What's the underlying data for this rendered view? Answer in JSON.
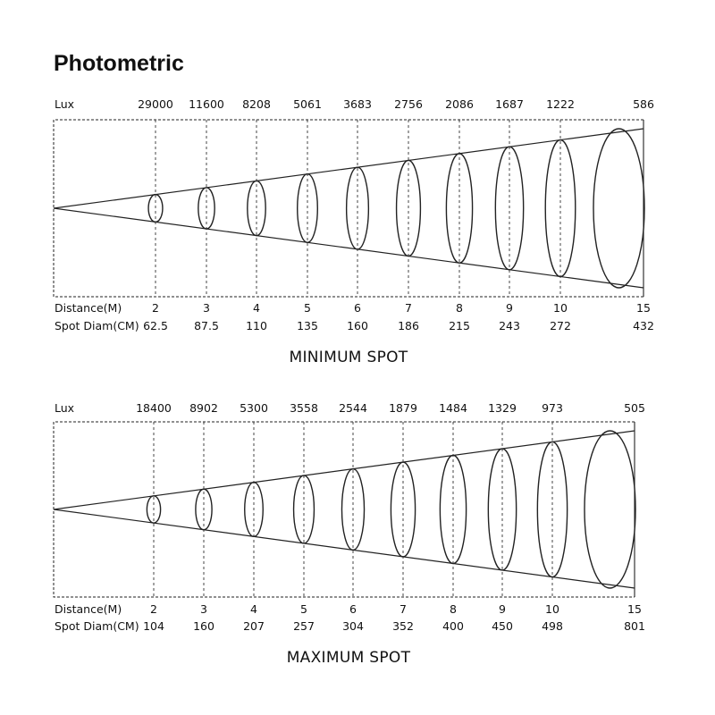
{
  "title": "Photometric",
  "chart_data": [
    {
      "type": "beam-diagram",
      "caption": "MINIMUM SPOT",
      "lux_label": "Lux",
      "distance_label": "Distance(M)",
      "diameter_label": "Spot Diam(CM)",
      "distances": [
        2,
        3,
        4,
        5,
        6,
        7,
        8,
        9,
        10,
        15
      ],
      "lux": [
        29000,
        11600,
        8208,
        5061,
        3683,
        2756,
        2086,
        1687,
        1222,
        586
      ],
      "spot_diam_cm": [
        62.5,
        87.5,
        110,
        135,
        160,
        186,
        215,
        243,
        272,
        432
      ]
    },
    {
      "type": "beam-diagram",
      "caption": "MAXIMUM SPOT",
      "lux_label": "Lux",
      "distance_label": "Distance(M)",
      "diameter_label": "Spot Diam(CM)",
      "distances": [
        2,
        3,
        4,
        5,
        6,
        7,
        8,
        9,
        10,
        15
      ],
      "lux": [
        18400,
        8902,
        5300,
        3558,
        2544,
        1879,
        1484,
        1329,
        973,
        505
      ],
      "spot_diam_cm": [
        104,
        160,
        207,
        257,
        304,
        352,
        400,
        450,
        498,
        801
      ]
    }
  ]
}
